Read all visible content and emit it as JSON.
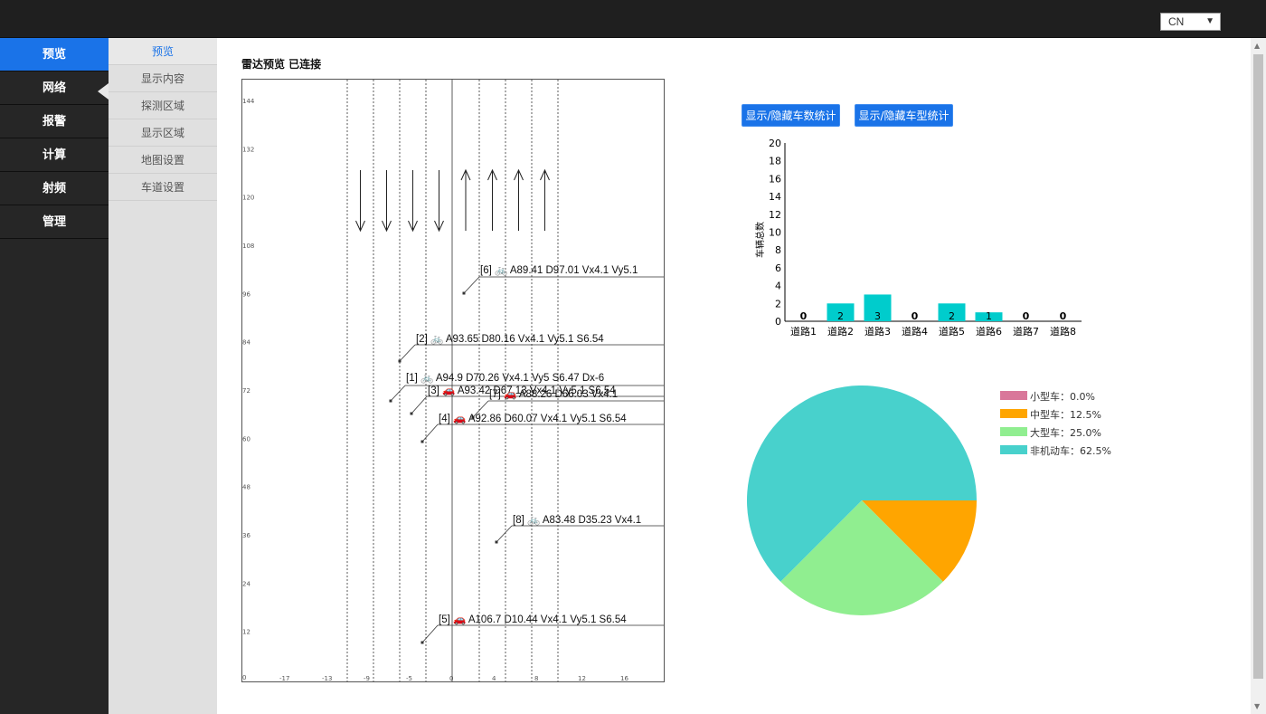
{
  "header": {
    "language": "CN"
  },
  "left_nav": {
    "items": [
      "预览",
      "网络",
      "报警",
      "计算",
      "射频",
      "管理"
    ],
    "active": 0
  },
  "sub_nav": {
    "items": [
      "预览",
      "显示内容",
      "探测区域",
      "显示区域",
      "地图设置",
      "车道设置"
    ],
    "active": 0
  },
  "page_title": "雷达预览 已连接",
  "radar": {
    "y_ticks": [
      "144",
      "132",
      "120",
      "108",
      "96",
      "84",
      "72",
      "60",
      "48",
      "36",
      "24",
      "12",
      "0"
    ],
    "x_ticks": [
      "-17",
      "-13",
      "-9",
      "-5",
      "0",
      "4",
      "8",
      "12",
      "16"
    ],
    "lane_dirs": [
      "down",
      "down",
      "down",
      "down",
      "up",
      "up",
      "up",
      "up"
    ],
    "targets": [
      {
        "label": "[6] 🚲 A89.41  D97.01  Vx4.1  Vy5.1"
      },
      {
        "label": "[2] 🚲 A93.65  D80.16  Vx4.1  Vy5.1  S6.54"
      },
      {
        "label": "[1] 🚲 A94.9  D70.26  Vx4.1  Vy5  S6.47  Dx-6"
      },
      {
        "label": "[3] 🚗 A93.42  D67.13  Vx4.1  Vy5.1  S6.54"
      },
      {
        "label": "[7] 🚗 A88.26  D66.03  Vx4.1"
      },
      {
        "label": "[4] 🚗 A92.86  D60.07  Vx4.1  Vy5.1  S6.54"
      },
      {
        "label": "[8] 🚲 A83.48  D35.23  Vx4.1"
      },
      {
        "label": "[5] 🚗 A106.7  D10.44  Vx4.1  Vy5.1  S6.54"
      }
    ]
  },
  "buttons": {
    "toggle_count": "显示/隐藏车数统计",
    "toggle_type": "显示/隐藏车型统计"
  },
  "chart_data": [
    {
      "type": "bar",
      "ylabel": "车辆总数",
      "ylim": [
        0,
        20
      ],
      "y_ticks": [
        0,
        2,
        4,
        6,
        8,
        10,
        12,
        14,
        16,
        18,
        20
      ],
      "categories": [
        "道路1",
        "道路2",
        "道路3",
        "道路4",
        "道路5",
        "道路6",
        "道路7",
        "道路8"
      ],
      "values": [
        0,
        2,
        3,
        0,
        2,
        1,
        0,
        0
      ],
      "bar_color": "#00cccc"
    },
    {
      "type": "pie",
      "slices": [
        {
          "name": "小型车",
          "value": 0.0,
          "label": "小型车：0.0%",
          "color": "#d9779a"
        },
        {
          "name": "中型车",
          "value": 12.5,
          "label": "中型车：12.5%",
          "color": "#ffa500"
        },
        {
          "name": "大型车",
          "value": 25.0,
          "label": "大型车：25.0%",
          "color": "#90ee90"
        },
        {
          "name": "非机动车",
          "value": 62.5,
          "label": "非机动车：62.5%",
          "color": "#48d1cc"
        }
      ]
    }
  ]
}
